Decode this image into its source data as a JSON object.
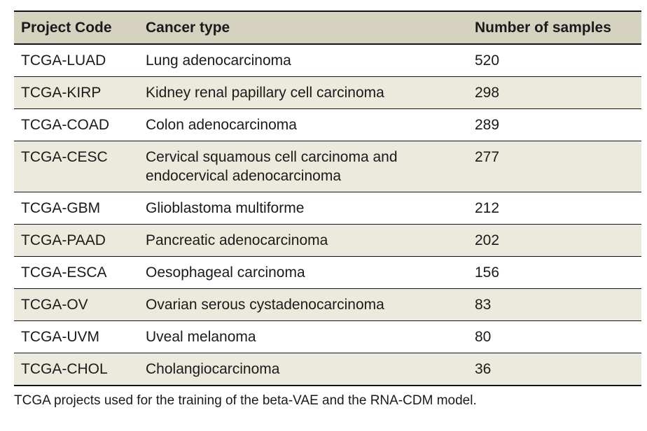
{
  "table": {
    "columns": [
      "Project Code",
      "Cancer type",
      "Number of samples"
    ],
    "rows": [
      {
        "code": "TCGA-LUAD",
        "cancer_type": "Lung adenocarcinoma",
        "samples": "520"
      },
      {
        "code": "TCGA-KIRP",
        "cancer_type": "Kidney renal papillary cell carcinoma",
        "samples": "298"
      },
      {
        "code": "TCGA-COAD",
        "cancer_type": "Colon adenocarcinoma",
        "samples": "289"
      },
      {
        "code": "TCGA-CESC",
        "cancer_type": "Cervical squamous cell carcinoma and endocervical adenocarcinoma",
        "samples": "277"
      },
      {
        "code": "TCGA-GBM",
        "cancer_type": "Glioblastoma multiforme",
        "samples": "212"
      },
      {
        "code": "TCGA-PAAD",
        "cancer_type": "Pancreatic adenocarcinoma",
        "samples": "202"
      },
      {
        "code": "TCGA-ESCA",
        "cancer_type": "Oesophageal carcinoma",
        "samples": "156"
      },
      {
        "code": "TCGA-OV",
        "cancer_type": "Ovarian serous cystadenocarcinoma",
        "samples": "83"
      },
      {
        "code": "TCGA-UVM",
        "cancer_type": "Uveal melanoma",
        "samples": "80"
      },
      {
        "code": "TCGA-CHOL",
        "cancer_type": "Cholangiocarcinoma",
        "samples": "36"
      }
    ],
    "caption": "TCGA projects used for the training of the beta-VAE and the RNA-CDM model."
  },
  "colors": {
    "header_bg": "#d5d2c0",
    "row_alt_bg": "#ece9dd",
    "row_bg": "#ffffff",
    "rule": "#141414",
    "text": "#1a1a1a"
  }
}
